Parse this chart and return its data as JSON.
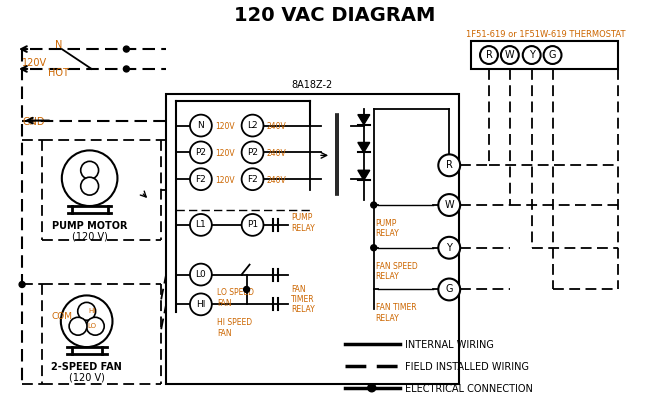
{
  "title": "120 VAC DIAGRAM",
  "title_fontsize": 14,
  "bg_color": "#ffffff",
  "thermostat_label": "1F51-619 or 1F51W-619 THERMOSTAT",
  "thermostat_terminals": [
    "R",
    "W",
    "Y",
    "G"
  ],
  "control_box_label": "8A18Z-2",
  "legend": {
    "internal": "INTERNAL WIRING",
    "field": "FIELD INSTALLED WIRING",
    "electrical": "ELECTRICAL CONNECTION"
  },
  "orange": "#cc6600",
  "black": "#000000",
  "figsize": [
    6.7,
    4.19
  ],
  "dpi": 100
}
